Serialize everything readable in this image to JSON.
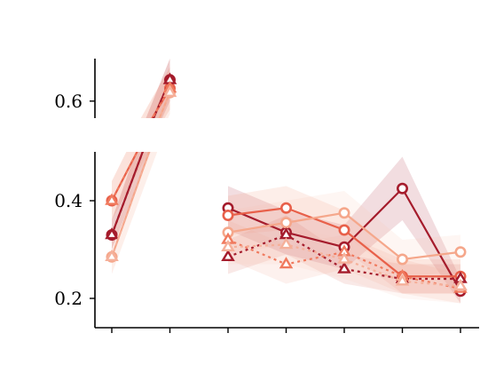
{
  "chart_data": {
    "type": "line",
    "broken_y_axis": true,
    "x": [
      0,
      1,
      2,
      3,
      4,
      5,
      6
    ],
    "x_tick_labels": [
      "",
      "",
      "",
      "",
      "",
      "",
      ""
    ],
    "y_tick_labels": [
      "0.2",
      "0.4",
      "0.6"
    ],
    "y_ticks": [
      0.2,
      0.4,
      0.6
    ],
    "ylim_lower": [
      0.14,
      0.5
    ],
    "ylim_upper": [
      0.56,
      0.7
    ],
    "xlabel": "",
    "ylabel": "",
    "title": "",
    "grid": false,
    "legend": "none",
    "series": [
      {
        "marker": "circle",
        "line_style": "solid",
        "color": "#a51c2c",
        "band_color": "#a51c2c",
        "values": [
          0.33,
          0.65,
          0.385,
          0.335,
          0.305,
          0.425,
          0.215
        ],
        "band": [
          [
            0.3,
            0.36
          ],
          [
            0.6,
            0.7
          ],
          [
            0.34,
            0.43
          ],
          [
            0.29,
            0.38
          ],
          [
            0.26,
            0.35
          ],
          [
            0.36,
            0.49
          ],
          [
            0.19,
            0.24
          ]
        ]
      },
      {
        "marker": "circle",
        "line_style": "solid",
        "color": "#e8604a",
        "band_color": "#f08a6e",
        "values": [
          0.4,
          0.63,
          0.37,
          0.385,
          0.34,
          0.245,
          0.245
        ],
        "band": [
          [
            0.36,
            0.44
          ],
          [
            0.58,
            0.68
          ],
          [
            0.33,
            0.41
          ],
          [
            0.34,
            0.43
          ],
          [
            0.3,
            0.38
          ],
          [
            0.21,
            0.28
          ],
          [
            0.21,
            0.28
          ]
        ]
      },
      {
        "marker": "circle",
        "line_style": "solid",
        "color": "#f5a78b",
        "band_color": "#f7c4b0",
        "values": [
          0.285,
          0.62,
          0.335,
          0.355,
          0.375,
          0.28,
          0.295
        ],
        "band": [
          [
            0.25,
            0.32
          ],
          [
            0.57,
            0.67
          ],
          [
            0.29,
            0.38
          ],
          [
            0.31,
            0.4
          ],
          [
            0.33,
            0.42
          ],
          [
            0.24,
            0.32
          ],
          [
            0.26,
            0.33
          ]
        ]
      },
      {
        "marker": "triangle",
        "line_style": "dotted",
        "color": "#a51c2c",
        "band_color": "#d96a5e",
        "values": [
          0.33,
          0.65,
          0.285,
          0.33,
          0.26,
          0.24,
          0.24
        ],
        "band": [
          [
            0.3,
            0.36
          ],
          [
            0.6,
            0.7
          ],
          [
            0.25,
            0.32
          ],
          [
            0.29,
            0.37
          ],
          [
            0.23,
            0.29
          ],
          [
            0.21,
            0.27
          ],
          [
            0.21,
            0.27
          ]
        ]
      },
      {
        "marker": "triangle",
        "line_style": "dotted",
        "color": "#f07a5e",
        "band_color": "#f4a48c",
        "values": [
          0.4,
          0.63,
          0.32,
          0.27,
          0.295,
          0.245,
          0.22
        ],
        "band": [
          [
            0.36,
            0.44
          ],
          [
            0.58,
            0.68
          ],
          [
            0.28,
            0.36
          ],
          [
            0.23,
            0.31
          ],
          [
            0.26,
            0.33
          ],
          [
            0.21,
            0.28
          ],
          [
            0.19,
            0.25
          ]
        ]
      },
      {
        "marker": "triangle",
        "line_style": "dotted",
        "color": "#f5b09a",
        "band_color": "#f9cbbb",
        "values": [
          0.285,
          0.62,
          0.305,
          0.31,
          0.28,
          0.235,
          0.225
        ],
        "band": [
          [
            0.25,
            0.32
          ],
          [
            0.57,
            0.67
          ],
          [
            0.27,
            0.34
          ],
          [
            0.27,
            0.35
          ],
          [
            0.24,
            0.32
          ],
          [
            0.2,
            0.27
          ],
          [
            0.19,
            0.26
          ]
        ]
      }
    ]
  }
}
